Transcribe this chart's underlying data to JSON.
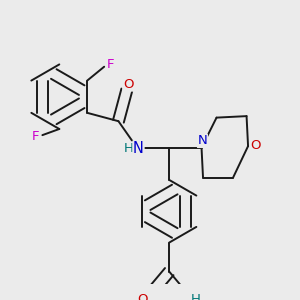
{
  "bg_color": "#ebebeb",
  "bond_color": "#1a1a1a",
  "bond_width": 1.4,
  "dbo": 0.018,
  "atom_colors": {
    "F": "#cc00cc",
    "O": "#cc0000",
    "N": "#0000cc",
    "H": "#007777"
  },
  "afs": 9.5
}
